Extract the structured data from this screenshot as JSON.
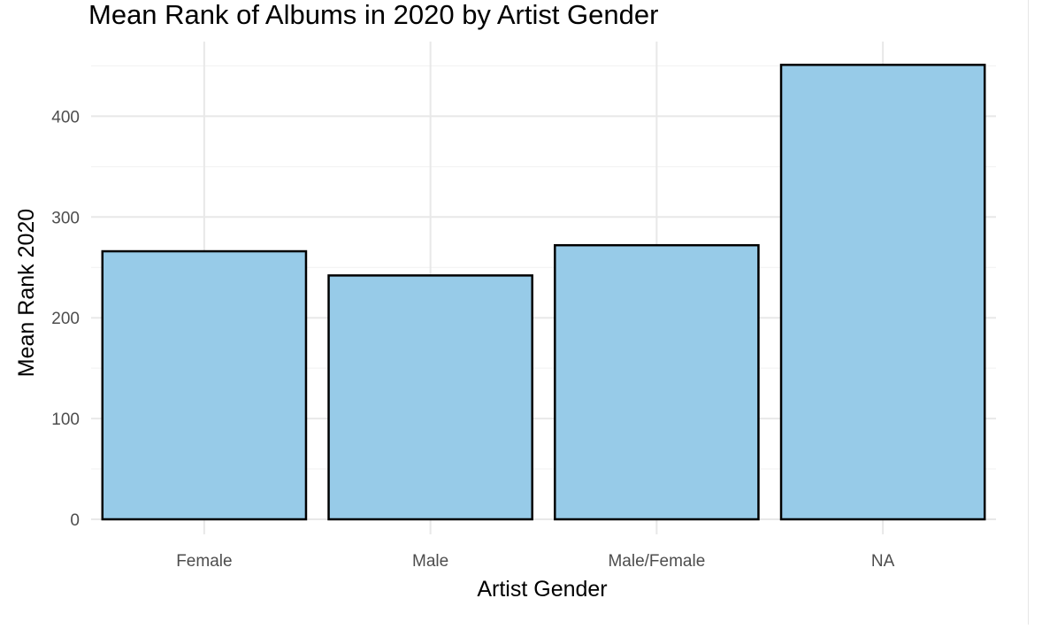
{
  "chart_data": {
    "type": "bar",
    "title": "Mean Rank of Albums in 2020 by Artist Gender",
    "xlabel": "Artist Gender",
    "ylabel": "Mean Rank 2020",
    "categories": [
      "Female",
      "Male",
      "Male/Female",
      "NA"
    ],
    "values": [
      266,
      242,
      272,
      451
    ],
    "ylim": [
      0,
      470
    ],
    "yticks": [
      0,
      100,
      200,
      300,
      400
    ],
    "grid": true,
    "legend": "none",
    "bar_fill": "#97cbe8",
    "bar_stroke": "#000000"
  }
}
